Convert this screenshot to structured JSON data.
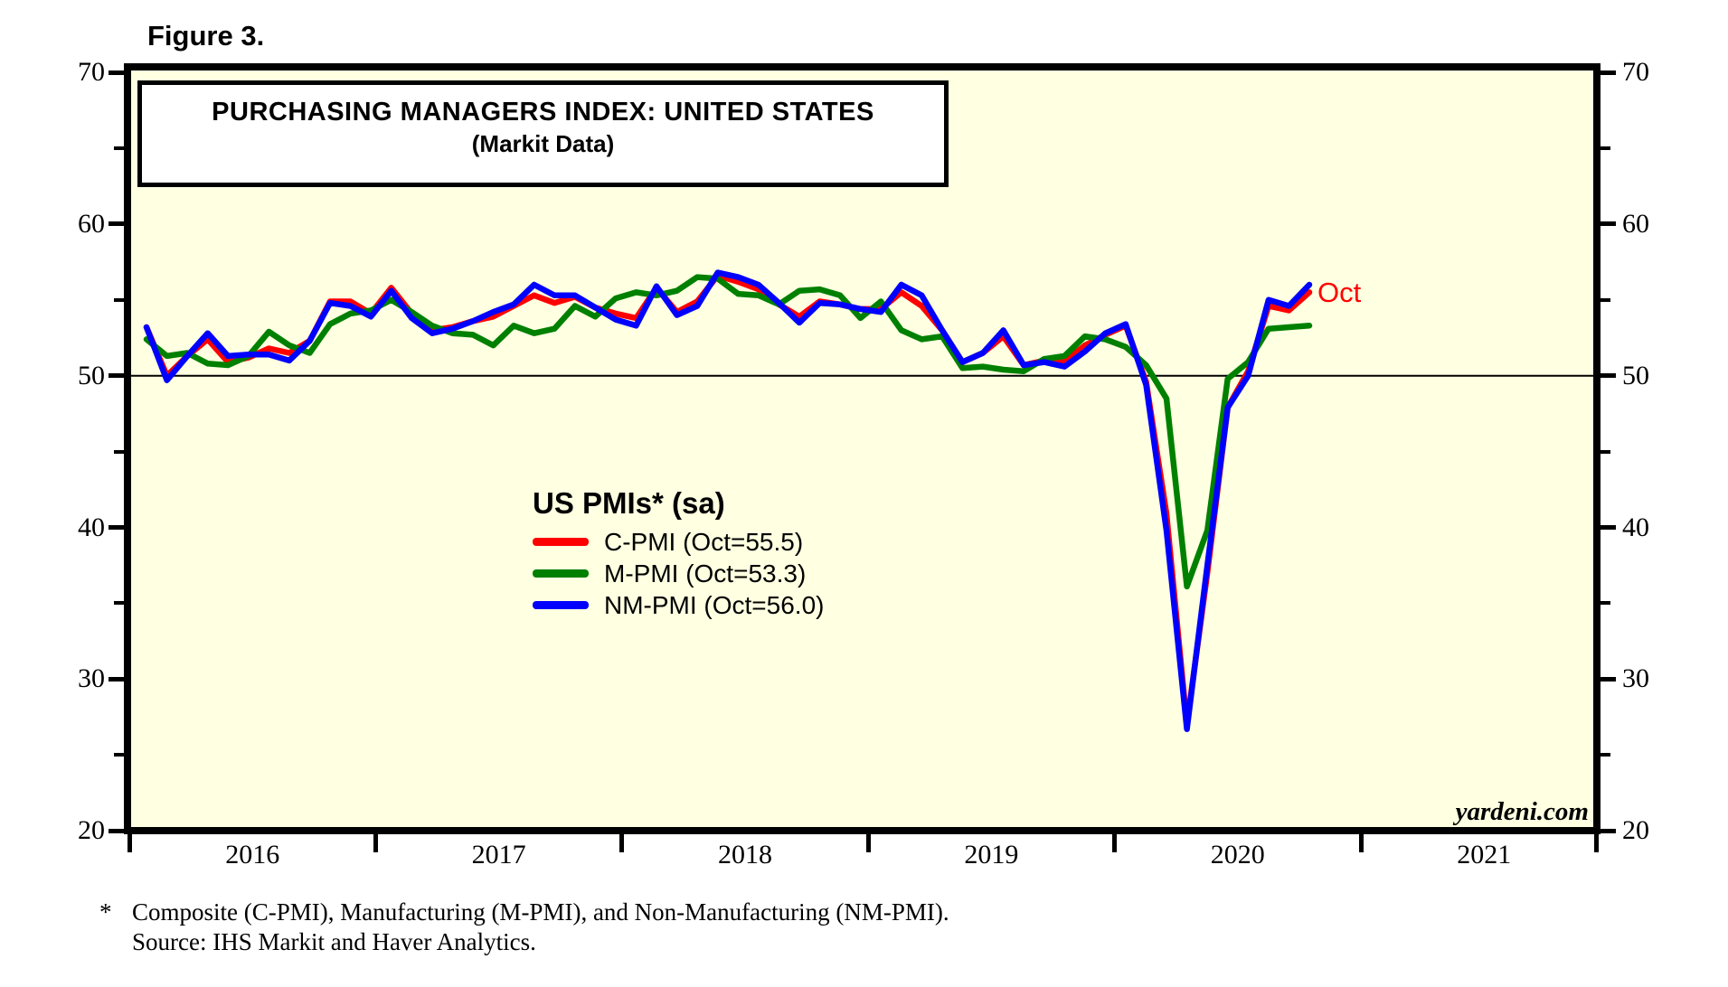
{
  "figure_label": "Figure 3.",
  "title": {
    "line1": "PURCHASING MANAGERS INDEX: UNITED STATES",
    "line2": "(Markit Data)"
  },
  "legend": {
    "title": "US PMIs* (sa)",
    "entries": [
      {
        "label": "C-PMI (Oct=55.5)",
        "color": "#FF0000"
      },
      {
        "label": "M-PMI (Oct=53.3)",
        "color": "#008000"
      },
      {
        "label": "NM-PMI (Oct=56.0)",
        "color": "#0000FF"
      }
    ]
  },
  "annotations": {
    "last_point_label": "Oct",
    "watermark": "yardeni.com"
  },
  "footnote": {
    "marker": "*",
    "line1": "Composite (C-PMI), Manufacturing (M-PMI), and Non-Manufacturing (NM-PMI).",
    "line2": "Source: IHS Markit and Haver Analytics."
  },
  "colors": {
    "plot_background": "#FFFFE1",
    "frame": "#000000",
    "reference_line": "#000000",
    "oct_label": "#FF0000"
  },
  "chart_data": {
    "type": "line",
    "title": "PURCHASING MANAGERS INDEX: UNITED STATES (Markit Data)",
    "frequency": "monthly",
    "x_start": "2016-01",
    "x_end": "2020-10",
    "x_axis": {
      "year_labels": [
        "2016",
        "2017",
        "2018",
        "2019",
        "2020",
        "2021"
      ],
      "num_year_boundaries": 7
    },
    "y_axis": {
      "ylim": [
        20,
        70
      ],
      "major_ticks": [
        70,
        60,
        50,
        40,
        30,
        20
      ],
      "minor_ticks": [
        65,
        55,
        45,
        35,
        25
      ],
      "reference_line": 50,
      "grid": false
    },
    "legend_position": "center-left inside plot",
    "series": [
      {
        "name": "C-PMI",
        "legend_label": "C-PMI (Oct=55.5)",
        "color": "#FF0000",
        "values": [
          53.2,
          50.0,
          51.3,
          52.4,
          50.9,
          51.2,
          51.8,
          51.5,
          52.3,
          54.9,
          54.9,
          54.1,
          55.8,
          54.1,
          53.0,
          53.2,
          53.6,
          53.9,
          54.6,
          55.3,
          54.8,
          55.2,
          54.5,
          54.1,
          53.8,
          55.8,
          54.2,
          54.9,
          56.6,
          56.2,
          55.7,
          54.7,
          53.9,
          54.9,
          54.7,
          54.4,
          54.4,
          55.5,
          54.6,
          53.0,
          50.9,
          51.5,
          52.6,
          50.7,
          51.0,
          50.9,
          52.0,
          52.7,
          53.3,
          49.6,
          40.9,
          27.0,
          37.0,
          47.9,
          50.3,
          54.6,
          54.3,
          55.5
        ]
      },
      {
        "name": "M-PMI",
        "legend_label": "M-PMI (Oct=53.3)",
        "color": "#008000",
        "values": [
          52.4,
          51.3,
          51.5,
          50.8,
          50.7,
          51.3,
          52.9,
          52.0,
          51.5,
          53.4,
          54.1,
          54.3,
          55.0,
          54.2,
          53.3,
          52.8,
          52.7,
          52.0,
          53.3,
          52.8,
          53.1,
          54.6,
          53.9,
          55.1,
          55.5,
          55.3,
          55.6,
          56.5,
          56.4,
          55.4,
          55.3,
          54.7,
          55.6,
          55.7,
          55.3,
          53.8,
          54.9,
          53.0,
          52.4,
          52.6,
          50.5,
          50.6,
          50.4,
          50.3,
          51.1,
          51.3,
          52.6,
          52.4,
          51.9,
          50.7,
          48.5,
          36.1,
          39.8,
          49.8,
          50.9,
          53.1,
          53.2,
          53.3
        ]
      },
      {
        "name": "NM-PMI",
        "legend_label": "NM-PMI (Oct=56.0)",
        "color": "#0000FF",
        "values": [
          53.2,
          49.7,
          51.3,
          52.8,
          51.3,
          51.4,
          51.4,
          51.0,
          52.3,
          54.8,
          54.6,
          53.9,
          55.6,
          53.8,
          52.8,
          53.1,
          53.6,
          54.2,
          54.7,
          56.0,
          55.3,
          55.3,
          54.5,
          53.7,
          53.3,
          55.9,
          54.0,
          54.6,
          56.8,
          56.5,
          56.0,
          54.8,
          53.5,
          54.8,
          54.7,
          54.4,
          54.2,
          56.0,
          55.3,
          53.0,
          50.9,
          51.5,
          53.0,
          50.7,
          50.9,
          50.6,
          51.6,
          52.8,
          53.4,
          49.4,
          39.8,
          26.7,
          37.5,
          47.9,
          50.0,
          55.0,
          54.6,
          56.0
        ]
      }
    ]
  }
}
